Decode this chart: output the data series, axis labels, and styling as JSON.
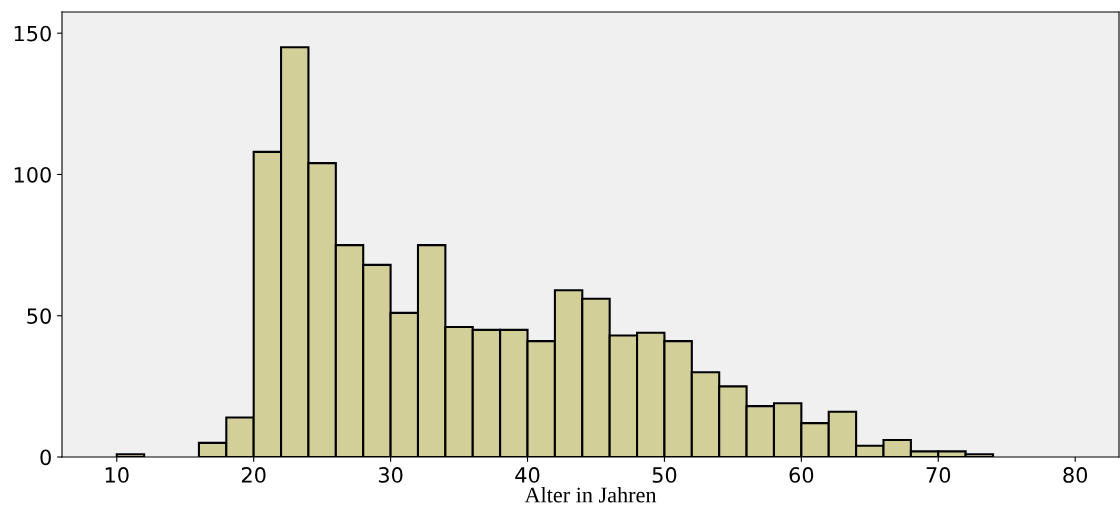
{
  "chart_data": {
    "type": "histogram",
    "xlabel": "Alter in Jahren",
    "bins": [
      10,
      12,
      14,
      16,
      18,
      20,
      22,
      24,
      26,
      28,
      30,
      32,
      34,
      36,
      38,
      40,
      42,
      44,
      46,
      48,
      50,
      52,
      54,
      56,
      58,
      60,
      62,
      64,
      66,
      68,
      70,
      72,
      74
    ],
    "values": [
      1,
      0,
      0,
      5,
      14,
      108,
      145,
      104,
      75,
      68,
      51,
      75,
      46,
      45,
      45,
      41,
      59,
      56,
      43,
      44,
      41,
      30,
      25,
      18,
      19,
      12,
      16,
      4,
      6,
      2,
      2,
      1
    ],
    "color": "#d3cf98",
    "xlim": [
      6,
      83.2
    ],
    "xticks": [
      10,
      20,
      30,
      40,
      50,
      60,
      70,
      80
    ],
    "ylim": [
      0,
      157.5
    ],
    "yticks": [
      0,
      50,
      100,
      150
    ],
    "grid": false,
    "legend": false
  }
}
